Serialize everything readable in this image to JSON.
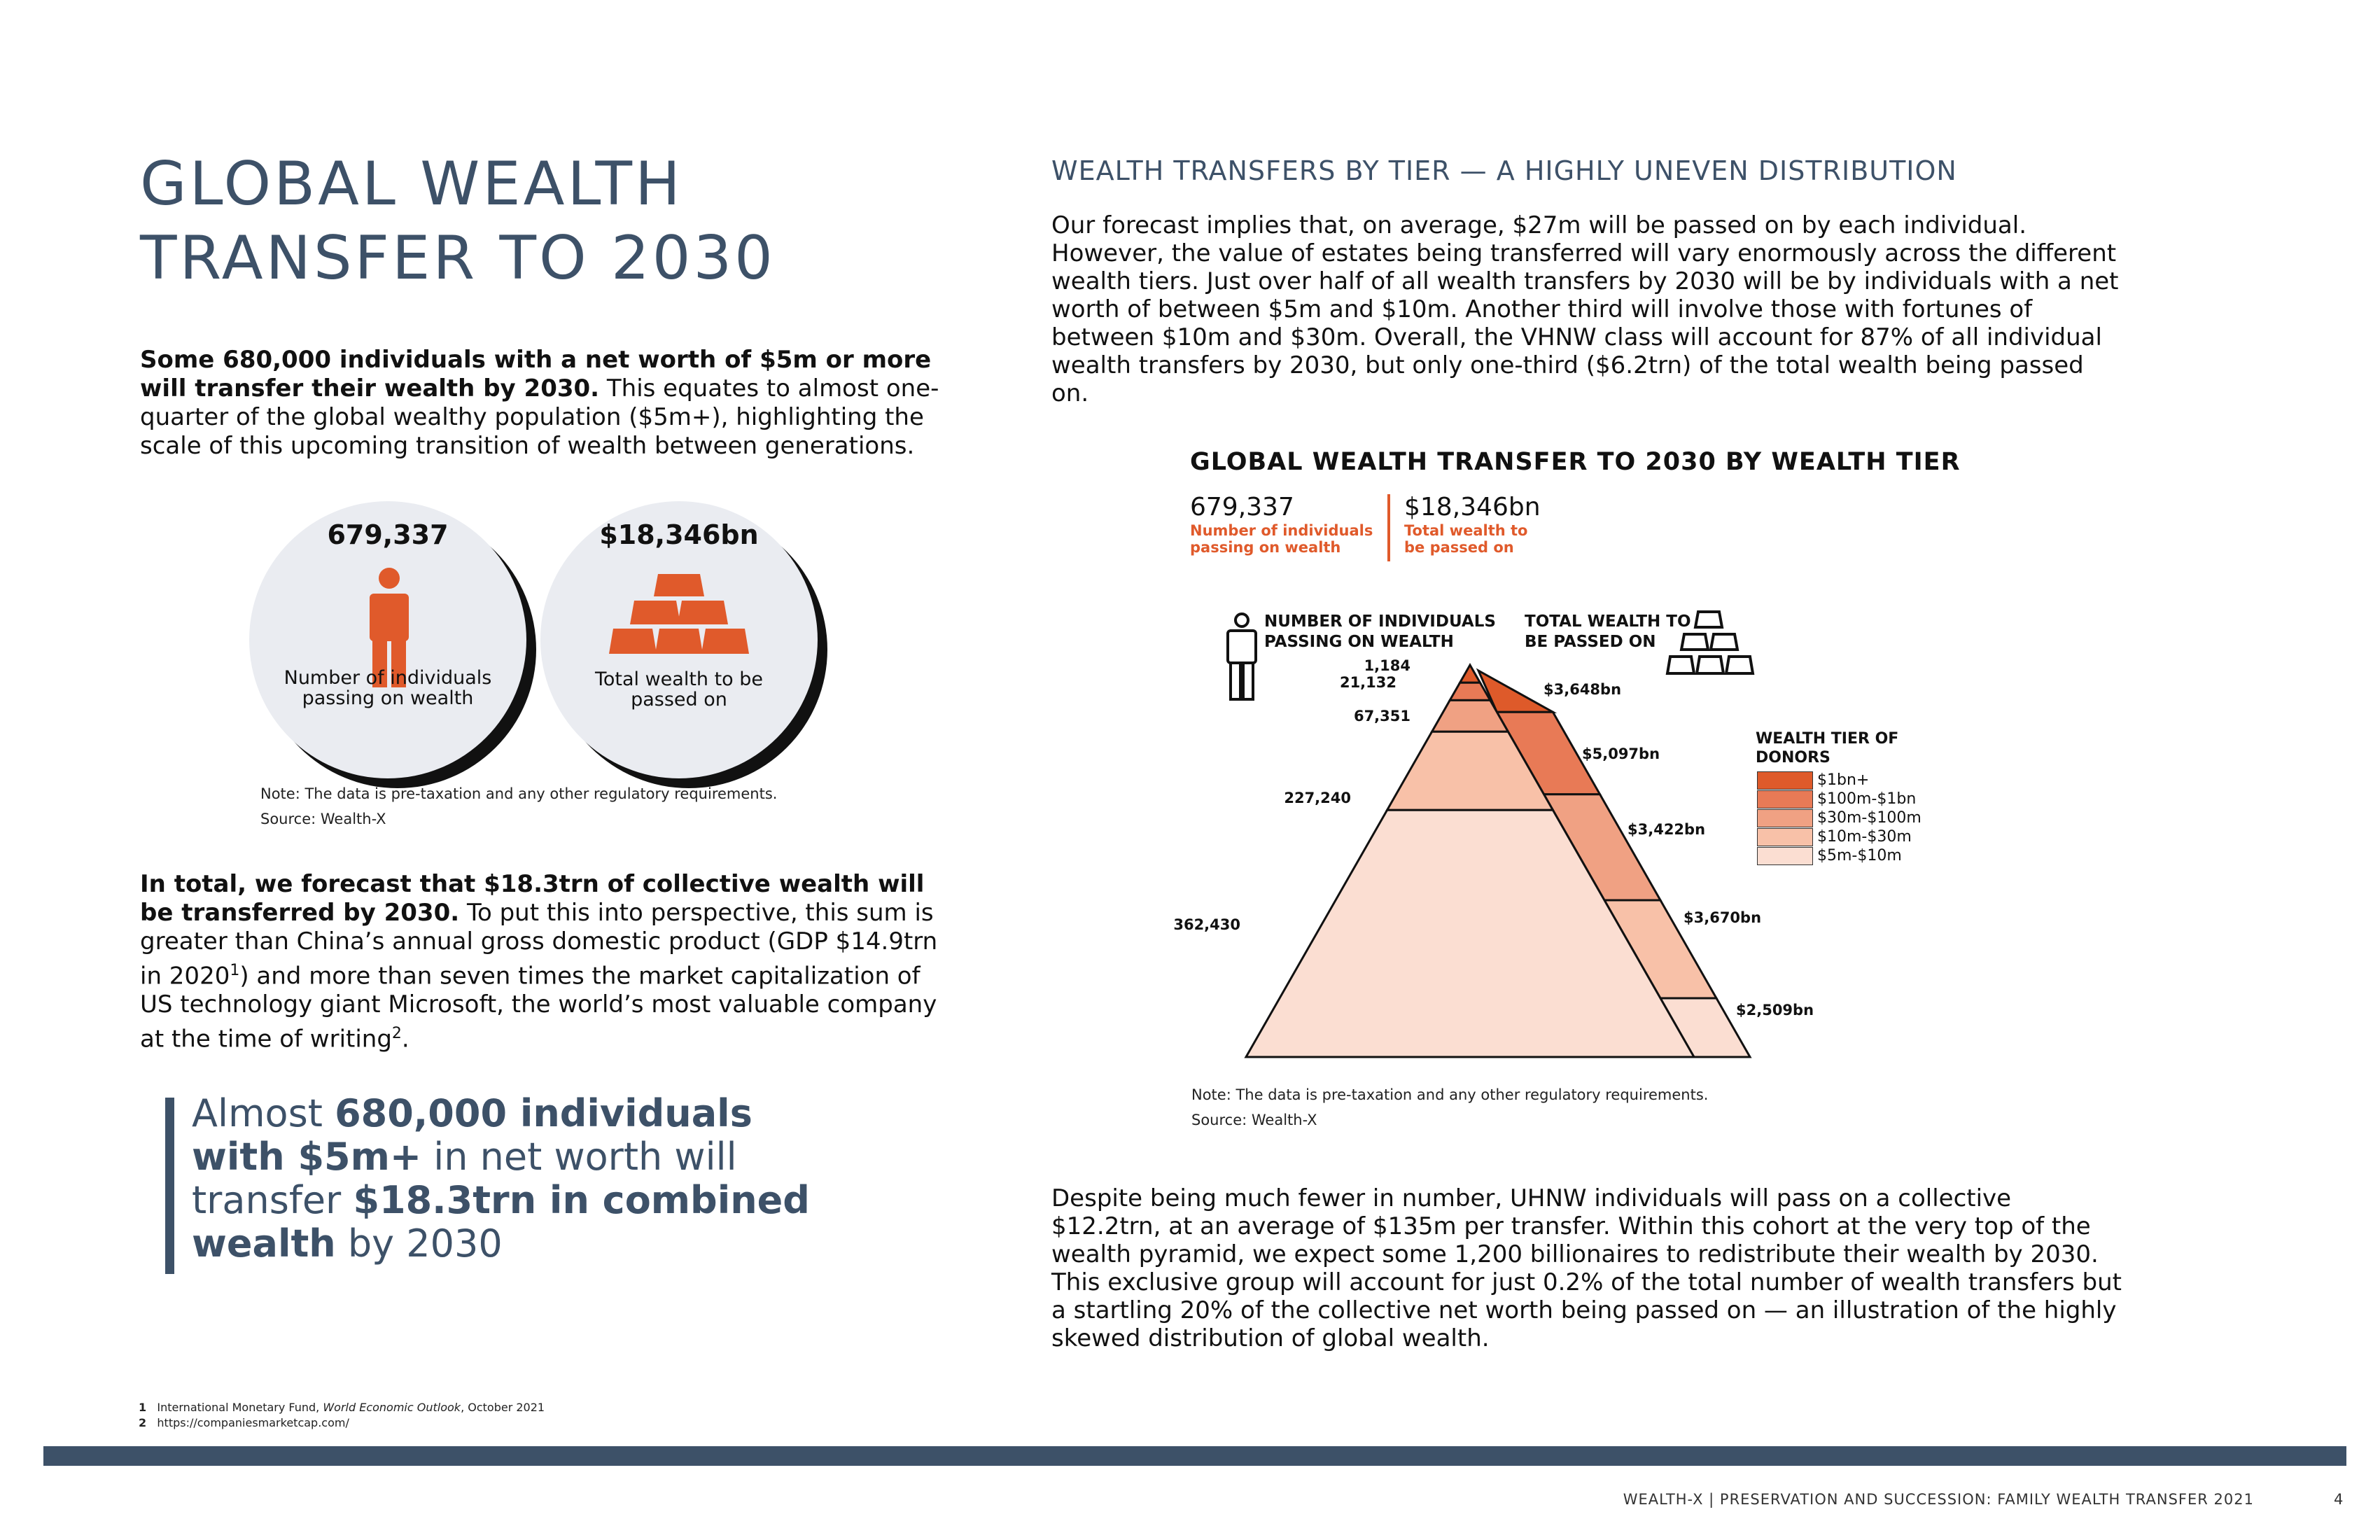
{
  "page": {
    "title_line1": "GLOBAL WEALTH",
    "title_line2": "TRANSFER TO 2030",
    "intro_bold": "Some 680,000 individuals with a net worth of $5m or more will transfer their wealth by 2030.",
    "intro_rest": " This equates to almost one-quarter of the global wealthy population ($5m+), highlighting the scale of this upcoming transition of wealth between generations.",
    "circle1_num": "679,337",
    "circle1_label": "Number of individuals passing on wealth",
    "circle2_num": "$18,346bn",
    "circle2_label": "Total wealth to be passed on",
    "note_left": "Note: The data is pre-taxation and any other regulatory requirements.",
    "source_left": "Source: Wealth-X",
    "para2_bold": "In total, we forecast that $18.3trn of collective wealth will be transferred by 2030.",
    "para2_rest_a": " To put this into perspective, this sum is greater than China’s annual gross domestic product (GDP $14.9trn in 2020",
    "para2_sup1": "1",
    "para2_rest_b": ") and more than seven times the market capitalization of US technology giant Microsoft, the world’s most valuable company at the time of writing",
    "para2_sup2": "2",
    "para2_end": ".",
    "quote_a": "Almost ",
    "quote_b": "680,000 individuals with $5m+",
    "quote_c": " in net worth will transfer ",
    "quote_d": "$18.3trn in combined wealth",
    "quote_e": " by 2030",
    "section_head": "WEALTH TRANSFERS BY TIER — A HIGHLY UNEVEN DISTRIBUTION",
    "para3": "Our forecast implies that, on average, $27m will be passed on by each individual. However, the value of estates being transferred will vary enormously across the different wealth tiers. Just over half of all wealth transfers by 2030 will be by individuals with a net worth of between $5m and $10m. Another third will involve those with fortunes of between $10m and $30m. Overall, the VHNW class will account for 87% of all individual wealth transfers by 2030, but only one-third ($6.2trn) of the total wealth being passed on.",
    "note_right": "Note: The data is pre-taxation and any other regulatory requirements.",
    "source_right": "Source: Wealth-X",
    "para4": "Despite being much fewer in number, UHNW individuals will pass on a collective $12.2trn, at an average of $135m per transfer. Within this cohort at the very top of the wealth pyramid, we expect some 1,200 billionaires to redistribute their wealth by 2030. This exclusive group will account for just 0.2% of the total number of wealth transfers but a startling 20% of the collective net worth being passed on — an illustration of the highly skewed distribution of global wealth.",
    "footnote1_num": "1",
    "footnote1_a": "International Monetary Fund, ",
    "footnote1_italic": "World Economic Outlook",
    "footnote1_b": ", October 2021",
    "footnote2_num": "2",
    "footnote2": "https://companiesmarketcap.com/",
    "footer": "WEALTH-X | PRESERVATION AND SUCCESSION: FAMILY WEALTH TRANSFER 2021",
    "page_number": "4"
  },
  "chart_data": {
    "type": "pyramid",
    "title": "GLOBAL WEALTH TRANSFER TO 2030 BY WEALTH TIER",
    "total_individuals": "679,337",
    "total_individuals_label": "Number of individuals passing on wealth",
    "total_wealth": "$18,346bn",
    "total_wealth_label": "Total wealth to be passed on",
    "left_header": "NUMBER OF INDIVIDUALS PASSING ON WEALTH",
    "right_header": "TOTAL WEALTH TO BE PASSED ON",
    "legend_title": "WEALTH TIER OF DONORS",
    "tiers": [
      {
        "name": "$1bn+",
        "individuals": 1184,
        "individuals_label": "1,184",
        "wealth_bn": 3648,
        "wealth_label": "$3,648bn",
        "color": "#de5a2a"
      },
      {
        "name": "$100m-$1bn",
        "individuals": 21132,
        "individuals_label": "21,132",
        "wealth_bn": 5097,
        "wealth_label": "$5,097bn",
        "color": "#e87a56"
      },
      {
        "name": "$30m-$100m",
        "individuals": 67351,
        "individuals_label": "67,351",
        "wealth_bn": 3422,
        "wealth_label": "$3,422bn",
        "color": "#f0a183"
      },
      {
        "name": "$10m-$30m",
        "individuals": 227240,
        "individuals_label": "227,240",
        "wealth_bn": 3670,
        "wealth_label": "$3,670bn",
        "color": "#f8c1a8"
      },
      {
        "name": "$5m-$10m",
        "individuals": 362430,
        "individuals_label": "362,430",
        "wealth_bn": 2509,
        "wealth_label": "$2,509bn",
        "color": "#fbded2"
      }
    ]
  }
}
